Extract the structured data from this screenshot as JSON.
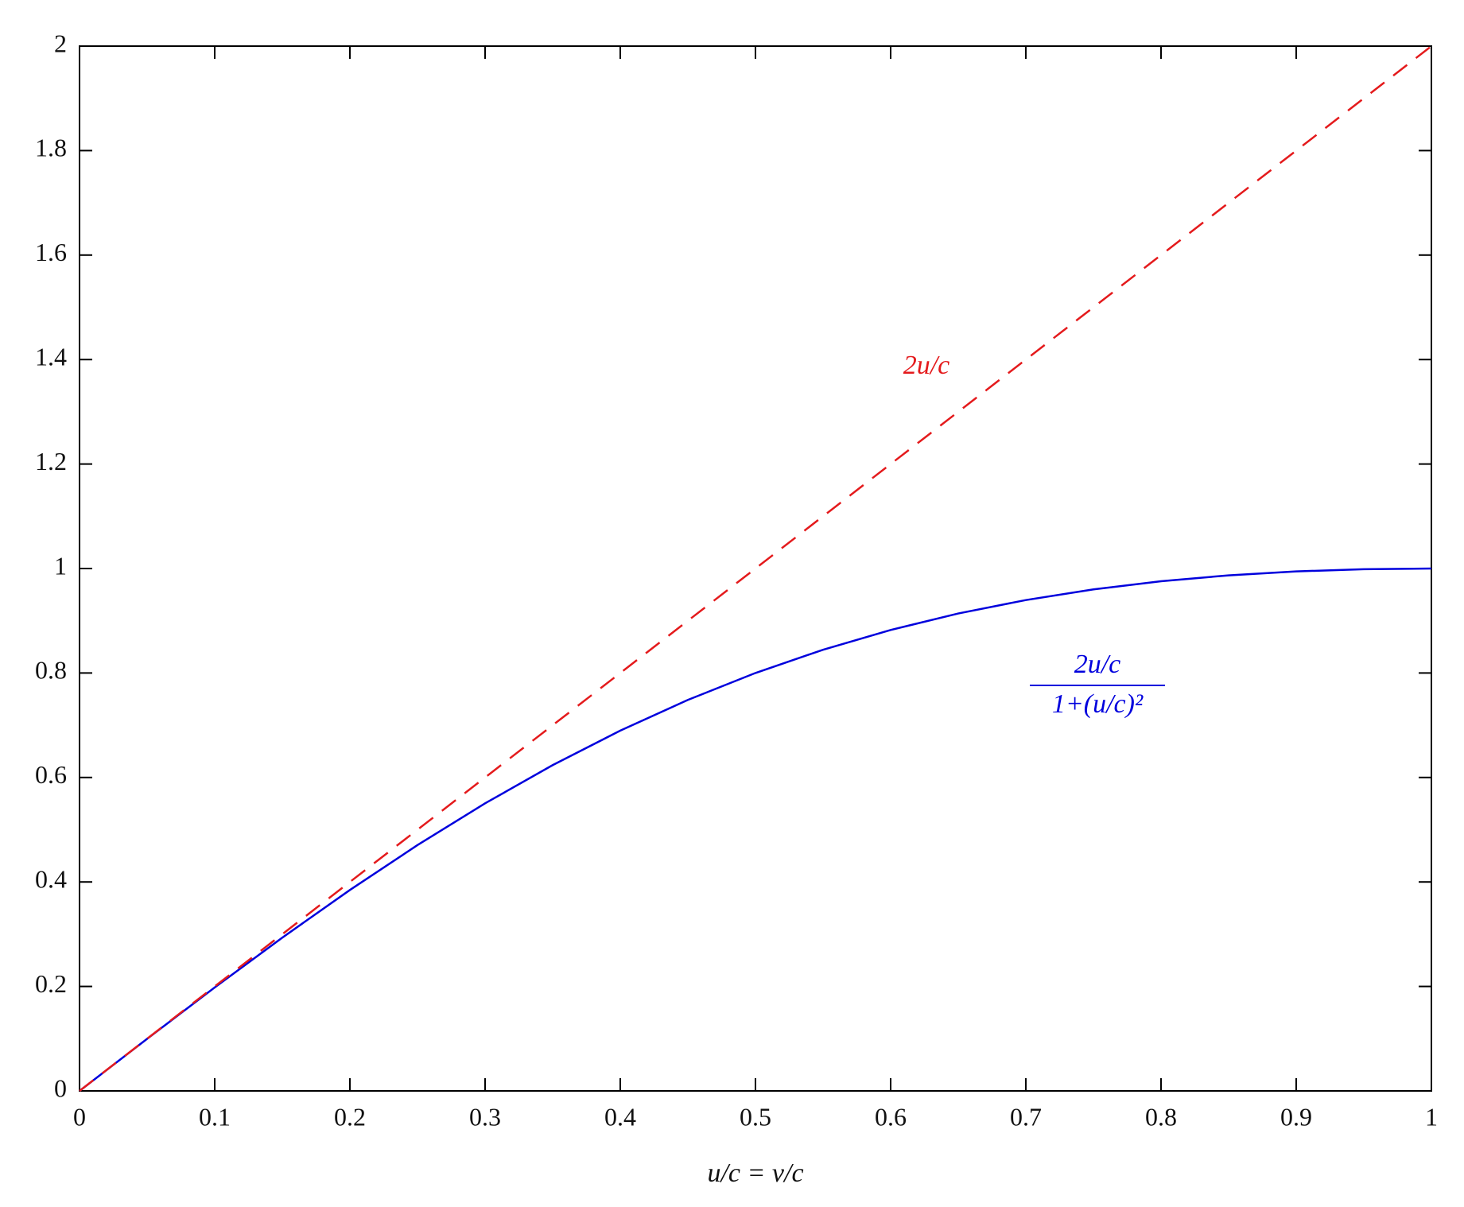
{
  "chart_data": {
    "type": "line",
    "x_label": "u/c = v/c",
    "x": [
      0,
      0.05,
      0.1,
      0.15,
      0.2,
      0.25,
      0.3,
      0.35,
      0.4,
      0.45,
      0.5,
      0.55,
      0.6,
      0.65,
      0.7,
      0.75,
      0.8,
      0.85,
      0.9,
      0.95,
      1
    ],
    "series": [
      {
        "name": "2u/c",
        "color": "#e41a1c",
        "linestyle": "dashed",
        "values": [
          0,
          0.1,
          0.2,
          0.3,
          0.4,
          0.5,
          0.6,
          0.7,
          0.8,
          0.9,
          1.0,
          1.1,
          1.2,
          1.3,
          1.4,
          1.5,
          1.6,
          1.7,
          1.8,
          1.9,
          2.0
        ]
      },
      {
        "name": "2u/c over 1+(u/c)²",
        "color": "#0000dd",
        "linestyle": "solid",
        "values": [
          0,
          0.09975,
          0.19802,
          0.2934,
          0.38462,
          0.47059,
          0.55046,
          0.62361,
          0.68966,
          0.74844,
          0.8,
          0.84453,
          0.88235,
          0.91388,
          0.9396,
          0.96,
          0.97561,
          0.98694,
          0.99448,
          0.99869,
          1
        ]
      }
    ],
    "annotations": {
      "red": "2u/c",
      "blue_numerator": "2u/c",
      "blue_denominator": "1+(u/c)²"
    },
    "xlim": [
      0,
      1
    ],
    "xticks": [
      0,
      0.1,
      0.2,
      0.3,
      0.4,
      0.5,
      0.6,
      0.7,
      0.8,
      0.9,
      1
    ],
    "ylim": [
      0,
      2
    ],
    "yticks": [
      0,
      0.2,
      0.4,
      0.6,
      0.8,
      1,
      1.2,
      1.4,
      1.6,
      1.8,
      2
    ],
    "grid": false
  }
}
